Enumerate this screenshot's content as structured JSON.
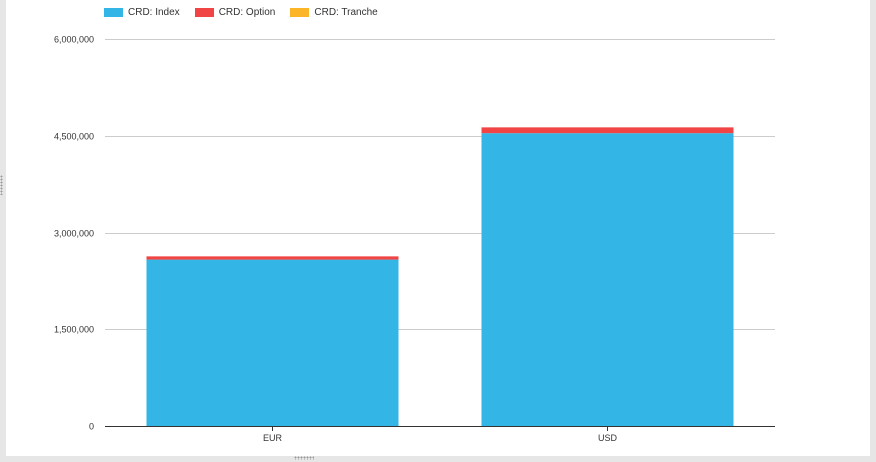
{
  "chart_data": {
    "type": "bar",
    "stacked": true,
    "categories": [
      "EUR",
      "USD"
    ],
    "series": [
      {
        "name": "CRD: Index",
        "color": "#33b5e5",
        "values": [
          2580000,
          4540000
        ]
      },
      {
        "name": "CRD: Option",
        "color": "#f14444",
        "values": [
          50000,
          90000
        ]
      },
      {
        "name": "CRD: Tranche",
        "color": "#fbb526",
        "values": [
          0,
          0
        ]
      }
    ],
    "ylim": [
      0,
      6000000
    ],
    "yticks": [
      0,
      1500000,
      3000000,
      4500000,
      6000000
    ],
    "ytick_labels": [
      "0",
      "1,500,000",
      "3,000,000",
      "4,500,000",
      "6,000,000"
    ],
    "grid": true,
    "legend_position": "top-left",
    "title": "",
    "xlabel": "",
    "ylabel": ""
  }
}
